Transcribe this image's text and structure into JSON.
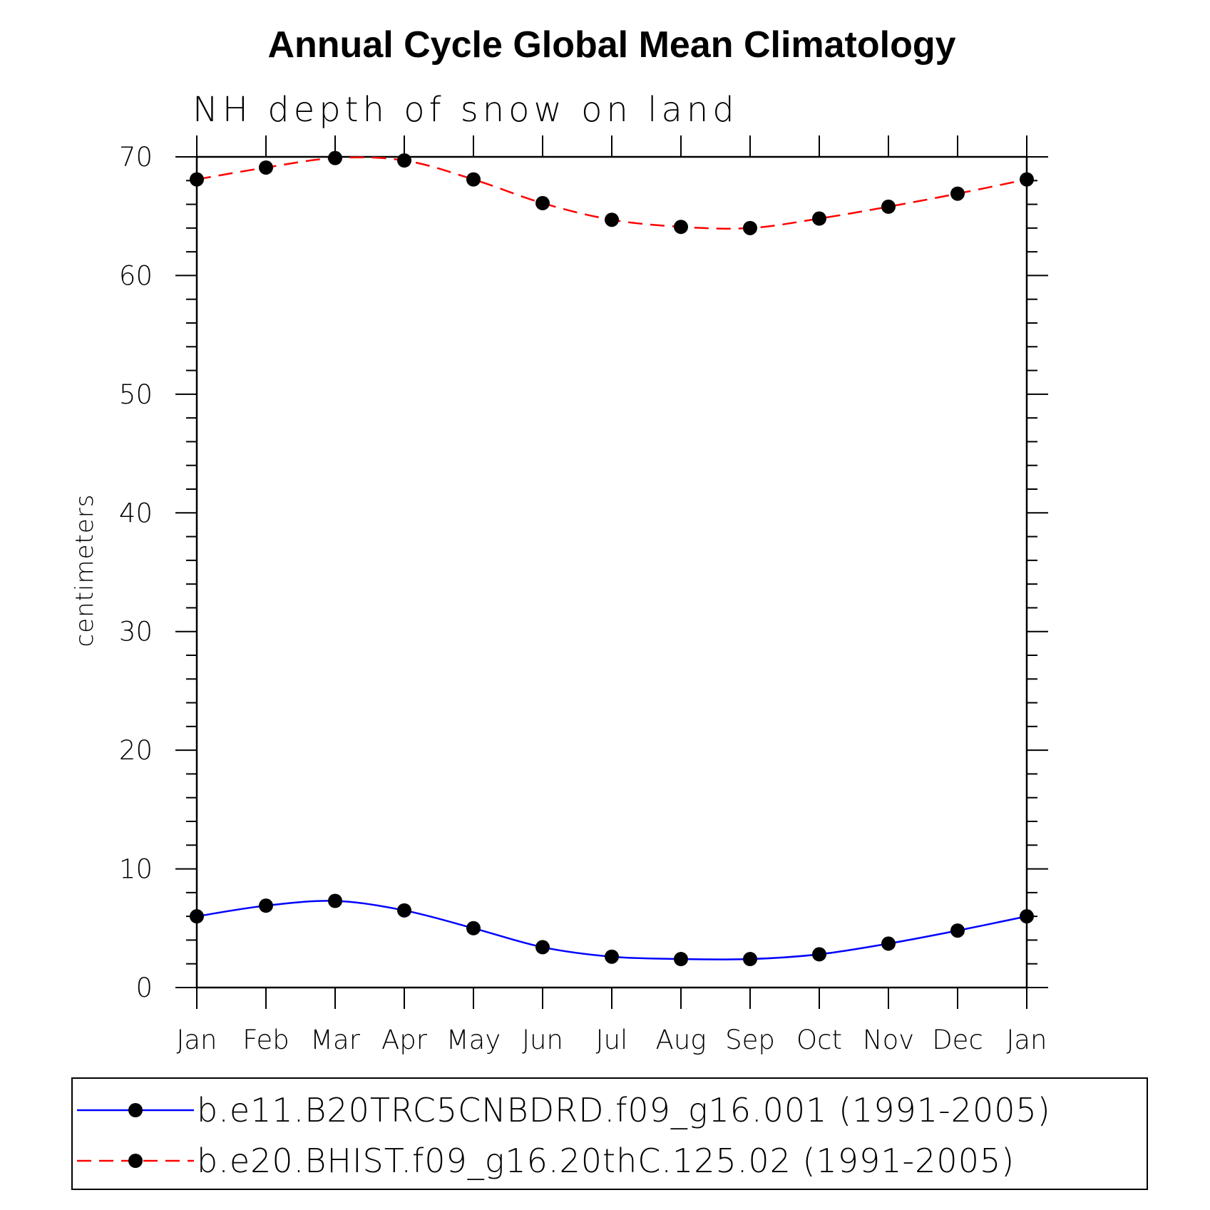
{
  "chart_data": {
    "type": "line",
    "title": "Annual Cycle Global Mean Climatology",
    "subtitle": "NH depth of snow on land",
    "ylabel": "centimeters",
    "xlabel": "",
    "ylim": [
      0,
      70
    ],
    "yticks": [
      0,
      10,
      20,
      30,
      40,
      50,
      60,
      70
    ],
    "categories": [
      "Jan",
      "Feb",
      "Mar",
      "Apr",
      "May",
      "Jun",
      "Jul",
      "Aug",
      "Sep",
      "Oct",
      "Nov",
      "Dec",
      "Jan"
    ],
    "series": [
      {
        "name": "b.e11.B20TRC5CNBDRD.f09_g16.001 (1991-2005)",
        "color": "#0000ff",
        "dash": "solid",
        "marker": "dot",
        "values": [
          6.0,
          6.9,
          7.3,
          6.5,
          5.0,
          3.4,
          2.6,
          2.4,
          2.4,
          2.8,
          3.7,
          4.8,
          6.0
        ]
      },
      {
        "name": "b.e20.BHIST.f09_g16.20thC.125.02 (1991-2005)",
        "color": "#ff0000",
        "dash": "dashed",
        "marker": "dot",
        "values": [
          68.1,
          69.1,
          69.9,
          69.7,
          68.1,
          66.1,
          64.7,
          64.1,
          64.0,
          64.8,
          65.8,
          66.9,
          68.1
        ]
      }
    ],
    "legend": "bottom",
    "grid": false
  }
}
